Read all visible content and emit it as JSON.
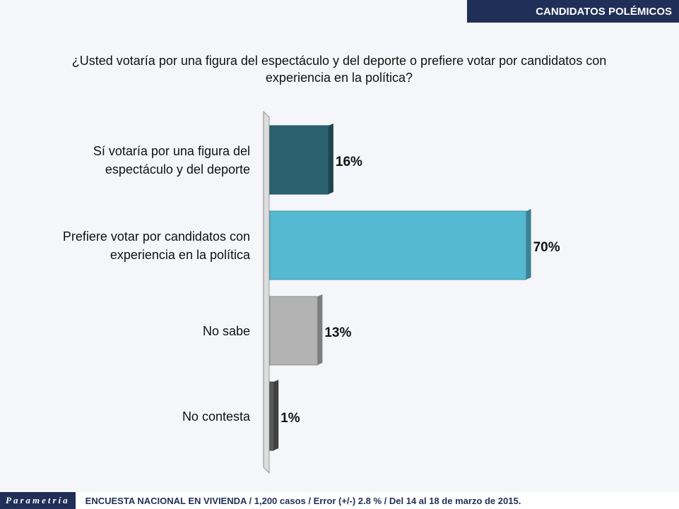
{
  "header": {
    "title": "CANDIDATOS POLÉMICOS"
  },
  "footer": {
    "brand": "Parametría",
    "text": "ENCUESTA NACIONAL EN VIVIENDA / 1,200 casos / Error (+/-) 2.8 % / Del 14 al 18 de marzo de 2015."
  },
  "chart_data": {
    "type": "hbar",
    "title": "¿Usted votaría por una figura del espectáculo y del deporte o prefiere votar por candidatos con experiencia en la política?",
    "categories": [
      "Sí votaría por una figura del espectáculo y del deporte",
      "Prefiere votar por candidatos con experiencia en la política",
      "No sabe",
      "No contesta"
    ],
    "values": [
      16,
      70,
      13,
      1
    ],
    "value_labels": [
      "16%",
      "70%",
      "13%",
      "1%"
    ],
    "colors": [
      "#2b6170",
      "#55b9d1",
      "#b3b3b3",
      "#5a5a5a"
    ],
    "xlim": [
      0,
      100
    ]
  }
}
